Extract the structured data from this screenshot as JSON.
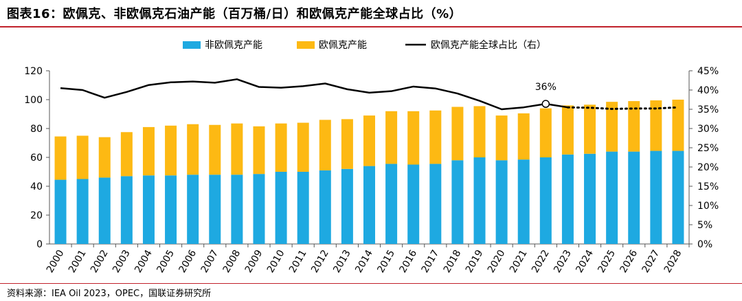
{
  "header": {
    "title": "图表16：欧佩克、非欧佩克石油产能（百万桶/日）和欧佩克产能全球占比（%）"
  },
  "footer": {
    "source": "资料来源：IEA Oil 2023，OPEC，国联证券研究所"
  },
  "colors": {
    "non_opec": "#1ea9e1",
    "opec": "#fdb913",
    "share_line": "#000000",
    "rule": "#c0202a"
  },
  "chart_data": {
    "type": "bar",
    "stacked": true,
    "categories": [
      "2000",
      "2001",
      "2002",
      "2003",
      "2004",
      "2005",
      "2006",
      "2007",
      "2008",
      "2009",
      "2010",
      "2011",
      "2012",
      "2013",
      "2014",
      "2015",
      "2016",
      "2017",
      "2018",
      "2019",
      "2020",
      "2021",
      "2022",
      "2023",
      "2024",
      "2025",
      "2026",
      "2027",
      "2028"
    ],
    "series": [
      {
        "name": "非欧佩克产能",
        "axis": "left",
        "values": [
          44.5,
          45,
          46,
          47,
          47.5,
          47.5,
          48,
          48,
          48,
          48.5,
          50,
          50,
          51,
          52,
          54,
          55.5,
          55,
          55.5,
          58,
          60,
          58,
          58.5,
          60,
          62,
          62.5,
          64,
          64,
          64.5,
          64.5
        ]
      },
      {
        "name": "欧佩克产能",
        "axis": "left",
        "values": [
          30,
          30,
          28,
          30.5,
          33.5,
          34.5,
          35,
          34.5,
          35.5,
          33,
          33.5,
          34,
          35,
          34.5,
          35,
          36.5,
          37,
          37,
          37,
          35.5,
          31,
          32,
          34,
          34,
          34,
          34.5,
          35,
          35,
          35.5
        ]
      },
      {
        "name": "欧佩克产能全球占比（右）",
        "axis": "right",
        "type": "line",
        "forecast_from": "2023",
        "values": [
          40.5,
          40,
          38,
          39.5,
          41.3,
          42,
          42.2,
          41.9,
          42.8,
          40.8,
          40.6,
          41,
          41.7,
          40.2,
          39.3,
          39.7,
          40.9,
          40.4,
          39.1,
          37.2,
          35,
          35.5,
          36.4,
          35.5,
          35.4,
          35.1,
          35.2,
          35.2,
          35.5
        ]
      }
    ],
    "annotation": {
      "category": "2022",
      "label": "36%"
    },
    "y_left": {
      "min": 0,
      "max": 120,
      "ticks": [
        "0",
        "20",
        "40",
        "60",
        "80",
        "100",
        "120"
      ]
    },
    "y_right": {
      "min": 0,
      "max": 45,
      "ticks": [
        "0%",
        "5%",
        "10%",
        "15%",
        "20%",
        "25%",
        "30%",
        "35%",
        "40%",
        "45%"
      ]
    },
    "legend": {
      "position": "top-center",
      "items": [
        "非欧佩克产能",
        "欧佩克产能",
        "欧佩克产能全球占比（右）"
      ]
    },
    "grid": false
  }
}
